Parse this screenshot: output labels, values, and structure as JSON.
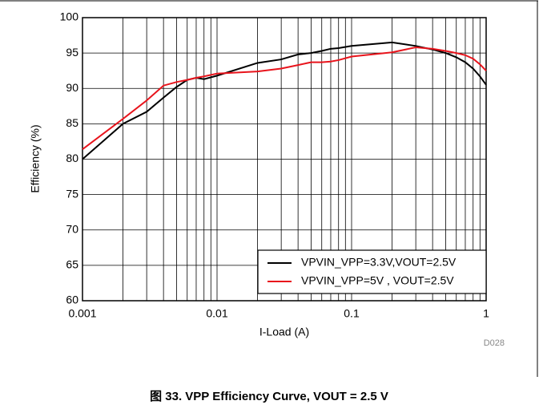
{
  "chart_data": {
    "type": "line",
    "title": "图 33. VPP Efficiency Curve, VOUT = 2.5 V",
    "xlabel": "I-Load (A)",
    "ylabel": "Efficiency (%)",
    "annotation": "D028",
    "x": [
      0.001,
      0.002,
      0.003,
      0.004,
      0.005,
      0.006,
      0.007,
      0.008,
      0.01,
      0.02,
      0.03,
      0.04,
      0.05,
      0.06,
      0.07,
      0.08,
      0.1,
      0.2,
      0.3,
      0.4,
      0.5,
      0.6,
      0.7,
      0.8,
      0.9,
      1
    ],
    "series": [
      {
        "name": "VPVIN_VPP=3.3V,VOUT=2.5V",
        "color": "#000000",
        "values": [
          80,
          85,
          86.7,
          88.7,
          90.2,
          91.2,
          91.5,
          91.3,
          91.8,
          93.6,
          94.1,
          94.8,
          95.0,
          95.3,
          95.6,
          95.7,
          96.0,
          96.5,
          96.0,
          95.5,
          95.0,
          94.4,
          93.7,
          92.8,
          91.7,
          90.5
        ]
      },
      {
        "name": "VPVIN_VPP=5V , VOUT=2.5V",
        "color": "#e8141c",
        "values": [
          81.4,
          85.7,
          88.3,
          90.4,
          90.9,
          91.2,
          91.5,
          91.7,
          92.1,
          92.4,
          92.8,
          93.3,
          93.7,
          93.7,
          93.8,
          94.0,
          94.5,
          95.1,
          95.8,
          95.6,
          95.3,
          95.0,
          94.7,
          94.2,
          93.4,
          92.5
        ]
      }
    ],
    "xlim": [
      0.001,
      1
    ],
    "xticks": [
      0.001,
      0.01,
      0.1,
      1
    ],
    "xscale": "log",
    "ylim": [
      60,
      100
    ],
    "yticks": [
      60,
      65,
      70,
      75,
      80,
      85,
      90,
      95,
      100
    ],
    "grid": true,
    "legend": "lower right"
  }
}
